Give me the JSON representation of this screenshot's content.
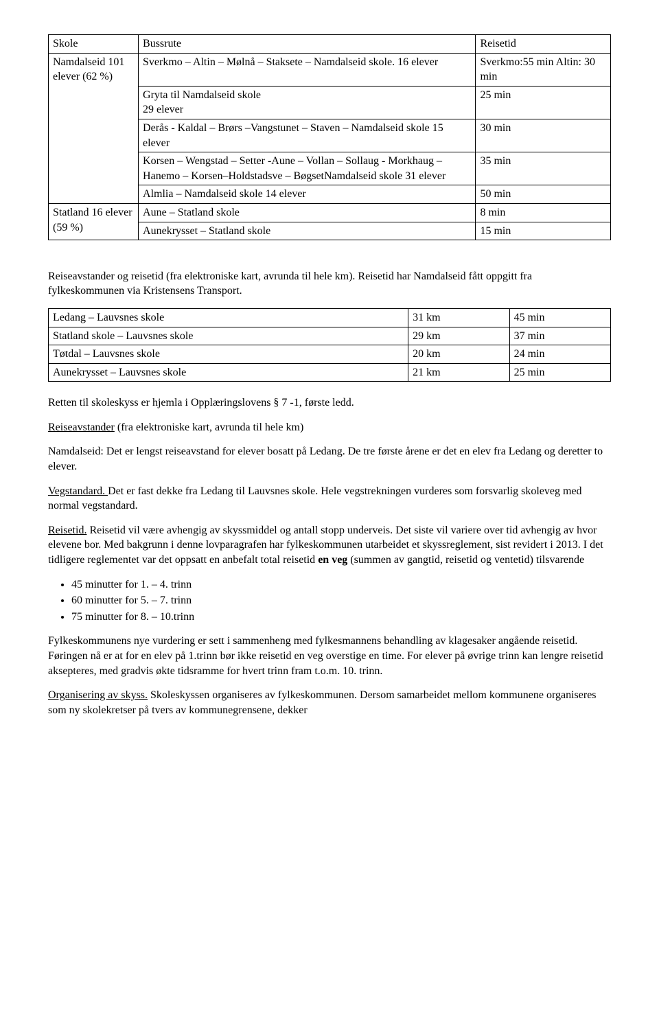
{
  "table1": {
    "headers": [
      "Skole",
      "Bussrute",
      "Reisetid"
    ],
    "rows": [
      [
        "Namdalseid 101 elever (62 %)",
        "Sverkmo – Altin – Mølnå – Staksete – Namdalseid skole. 16 elever",
        "Sverkmo:55 min Altin: 30 min"
      ],
      [
        "",
        "Gryta til Namdalseid skole\n29 elever",
        "25 min"
      ],
      [
        "",
        "Derås - Kaldal – Brørs –Vangstunet – Staven – Namdalseid skole 15 elever",
        "30 min"
      ],
      [
        "",
        "Korsen – Wengstad – Setter -Aune – Vollan – Sollaug - Morkhaug – Hanemo – Korsen–Holdstadsve – BøgsetNamdalseid skole 31 elever",
        "35 min"
      ],
      [
        "",
        "Almlia – Namdalseid skole 14 elever",
        "50 min"
      ],
      [
        "Statland 16 elever (59 %)",
        "Aune – Statland skole",
        "8 min"
      ],
      [
        "",
        "Aunekrysset – Statland skole",
        "15 min"
      ]
    ]
  },
  "para1": "Reiseavstander og reisetid (fra elektroniske kart, avrunda til hele km). Reisetid har Namdalseid fått oppgitt fra fylkeskommunen via Kristensens Transport.",
  "table2": {
    "rows": [
      [
        "Ledang – Lauvsnes skole",
        "31 km",
        "45 min"
      ],
      [
        "Statland skole – Lauvsnes skole",
        "29 km",
        "37 min"
      ],
      [
        "Tøtdal – Lauvsnes skole",
        "20 km",
        "24 min"
      ],
      [
        "Aunekrysset – Lauvsnes skole",
        "21 km",
        "25 min"
      ]
    ]
  },
  "para2": "Retten til skoleskyss er hjemla i Opplæringslovens § 7 -1, første ledd.",
  "para3_u": "Reiseavstander",
  "para3_rest": " (fra elektroniske kart, avrunda til hele km)",
  "para4": "Namdalseid: Det er lengst reiseavstand for elever bosatt på Ledang. De tre første årene er det en elev fra Ledang og deretter to elever.",
  "para5_u": "Vegstandard. ",
  "para5_rest": "Det er fast dekke fra Ledang til Lauvsnes skole. Hele vegstrekningen vurderes som forsvarlig skoleveg med normal vegstandard.",
  "para6_u": "Reisetid.",
  "para6_a": " Reisetid vil være avhengig av skyssmiddel og antall stopp underveis. Det siste vil variere over tid avhengig av hvor elevene bor. Med bakgrunn i denne lovparagrafen har fylkeskommunen utarbeidet et skyssreglement, sist revidert i 2013. I det tidligere reglementet var det oppsatt en anbefalt total reisetid ",
  "para6_bold": "en veg",
  "para6_b": " (summen av gangtid, reisetid og ventetid) tilsvarende",
  "bullets": [
    "45 minutter for 1. – 4. trinn",
    "60 minutter for 5. – 7. trinn",
    "75 minutter for 8. – 10.trinn"
  ],
  "para7": "Fylkeskommunens nye vurdering er sett i sammenheng med fylkesmannens behandling av klagesaker angående reisetid. Føringen nå er at for en elev på 1.trinn bør ikke reisetid en veg overstige en time. For elever på øvrige trinn kan lengre reisetid aksepteres, med gradvis økte tidsramme for hvert trinn fram t.o.m. 10. trinn.",
  "para8_u": "Organisering av skyss.",
  "para8_rest": " Skoleskyssen organiseres av fylkeskommunen. Dersom samarbeidet mellom kommunene organiseres som ny skolekretser på tvers av kommunegrensene, dekker"
}
